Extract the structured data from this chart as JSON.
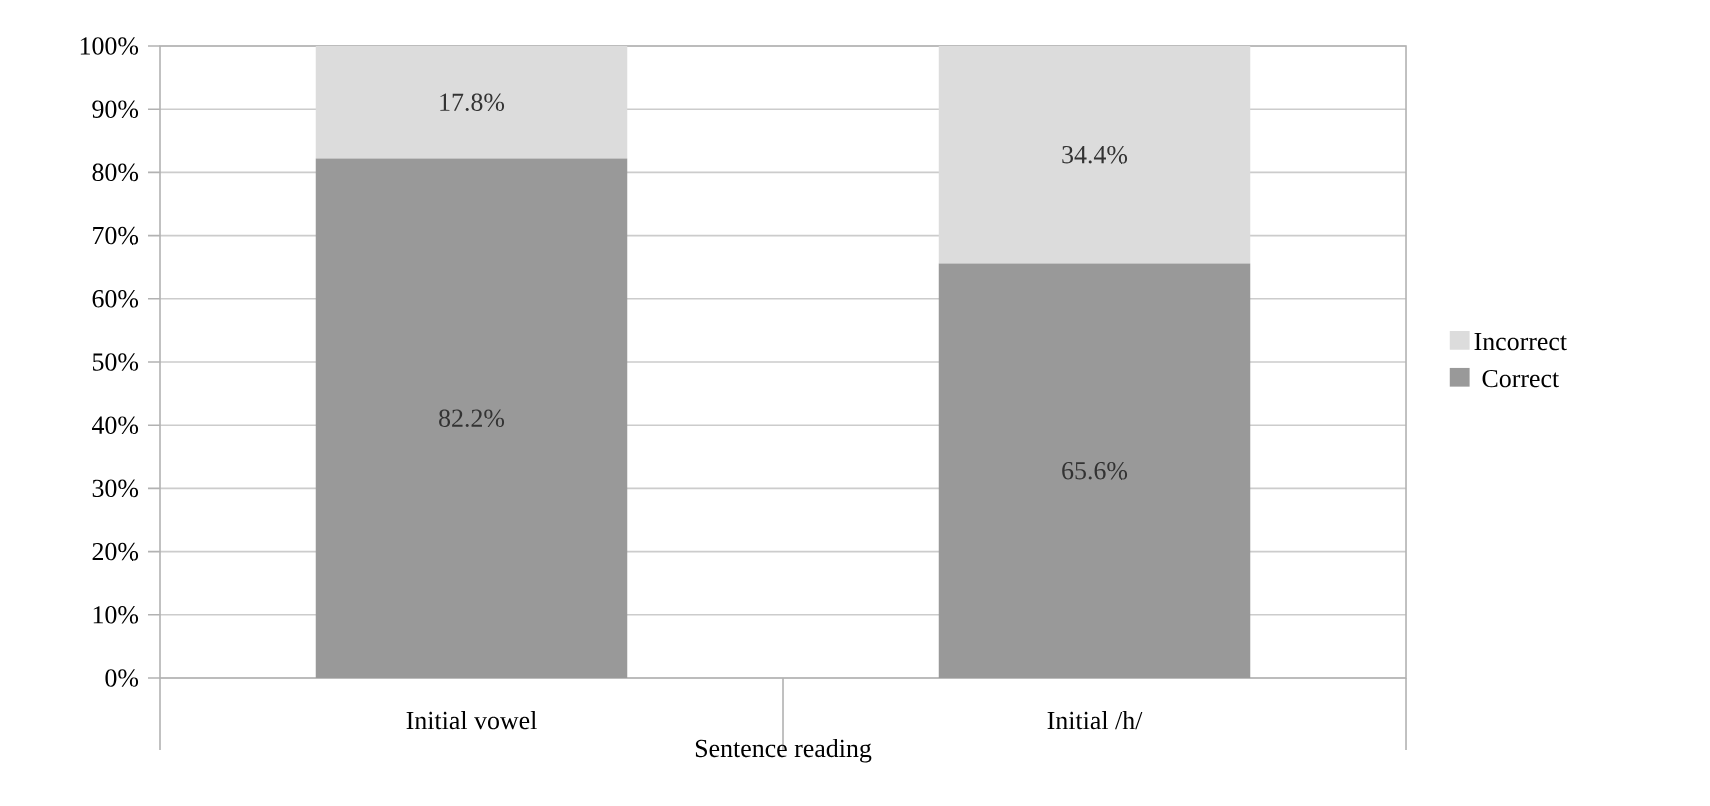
{
  "chart_data": {
    "type": "bar",
    "stacked": true,
    "xlabel": "Sentence reading",
    "categories": [
      "Initial vowel",
      "Initial /h/"
    ],
    "series": [
      {
        "name": "Correct",
        "color": "#999999",
        "values": [
          82.2,
          65.6
        ],
        "value_labels": [
          "82.2%",
          "65.6%"
        ]
      },
      {
        "name": "Incorrect",
        "color": "#dcdcdc",
        "values": [
          17.8,
          34.4
        ],
        "value_labels": [
          "17.8%",
          "34.4%"
        ]
      }
    ],
    "ylim": [
      0,
      100
    ],
    "yticks": [
      {
        "value": 0,
        "label": "0%"
      },
      {
        "value": 10,
        "label": "10%"
      },
      {
        "value": 20,
        "label": "20%"
      },
      {
        "value": 30,
        "label": "30%"
      },
      {
        "value": 40,
        "label": "40%"
      },
      {
        "value": 50,
        "label": "50%"
      },
      {
        "value": 60,
        "label": "60%"
      },
      {
        "value": 70,
        "label": "70%"
      },
      {
        "value": 80,
        "label": "80%"
      },
      {
        "value": 90,
        "label": "90%"
      },
      {
        "value": 100,
        "label": "100%"
      }
    ],
    "grid": "y",
    "legend": "right"
  }
}
